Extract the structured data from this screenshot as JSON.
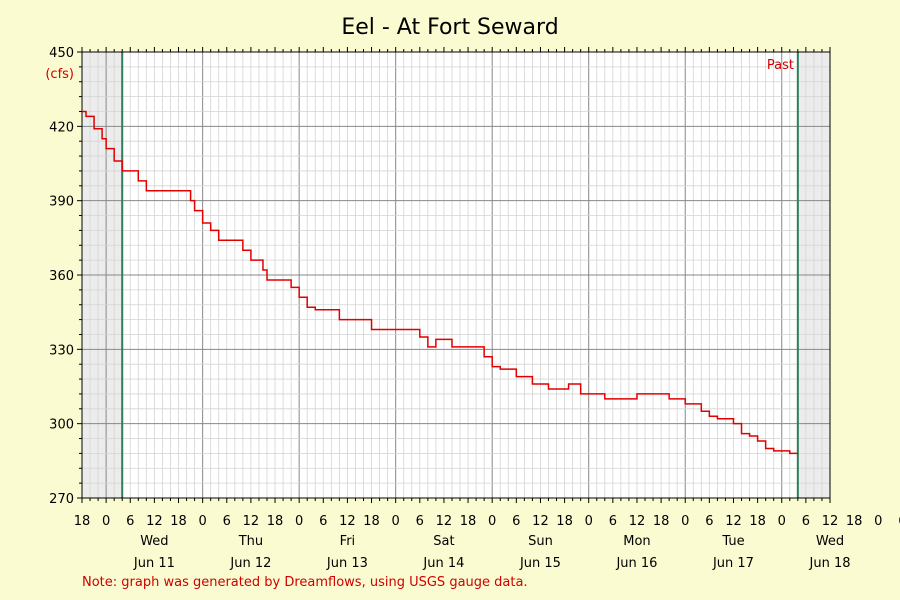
{
  "chart_data": {
    "type": "line",
    "title": "Eel - At Fort Seward",
    "ylabel": "(cfs)",
    "ylim": [
      270,
      450
    ],
    "yticks": [
      270,
      300,
      330,
      360,
      390,
      420,
      450
    ],
    "xlim_hours": [
      -6,
      180
    ],
    "x_hour_tick_labels": [
      "18",
      "0",
      "6",
      "12",
      "18",
      "0",
      "6",
      "12",
      "18",
      "0",
      "6",
      "12",
      "18",
      "0",
      "6",
      "12",
      "18",
      "0",
      "6",
      "12",
      "18",
      "0",
      "6",
      "12",
      "18",
      "0",
      "6",
      "12",
      "18",
      "0",
      "6",
      "12",
      "18",
      "0",
      "6",
      "12"
    ],
    "x_day_labels": [
      {
        "day": "Wed",
        "date": "Jun 11"
      },
      {
        "day": "Thu",
        "date": "Jun 12"
      },
      {
        "day": "Fri",
        "date": "Jun 13"
      },
      {
        "day": "Sat",
        "date": "Jun 14"
      },
      {
        "day": "Sun",
        "date": "Jun 15"
      },
      {
        "day": "Mon",
        "date": "Jun 16"
      },
      {
        "day": "Tue",
        "date": "Jun 17"
      },
      {
        "day": "Wed",
        "date": "Jun 18"
      }
    ],
    "shaded_before_hour": 4,
    "shaded_after_hour": 172,
    "annotation": "Past",
    "grid": true,
    "series": [
      {
        "color": "#e00000",
        "x": [
          -6,
          -5,
          -3,
          -1,
          0,
          2,
          4,
          8,
          10,
          12,
          18,
          21,
          22,
          24,
          26,
          28,
          31,
          34,
          36,
          39,
          40,
          42,
          46,
          48,
          50,
          52,
          56,
          58,
          61,
          66,
          70,
          74,
          78,
          80,
          82,
          86,
          88,
          90,
          94,
          96,
          98,
          102,
          106,
          110,
          115,
          118,
          120,
          124,
          128,
          132,
          136,
          140,
          144,
          148,
          150,
          152,
          154,
          156,
          158,
          160,
          162,
          164,
          166,
          170,
          172
        ],
        "y": [
          426,
          424,
          419,
          415,
          411,
          406,
          402,
          398,
          394,
          394,
          394,
          390,
          386,
          381,
          378,
          374,
          374,
          370,
          366,
          362,
          358,
          358,
          355,
          351,
          347,
          346,
          346,
          342,
          342,
          338,
          338,
          338,
          335,
          331,
          334,
          331,
          331,
          331,
          327,
          323,
          322,
          319,
          316,
          314,
          316,
          312,
          312,
          310,
          310,
          312,
          312,
          310,
          308,
          305,
          303,
          302,
          302,
          300,
          296,
          295,
          293,
          290,
          289,
          288,
          288
        ]
      }
    ]
  },
  "note": "Note: graph was generated by Dreamflows, using USGS gauge data."
}
